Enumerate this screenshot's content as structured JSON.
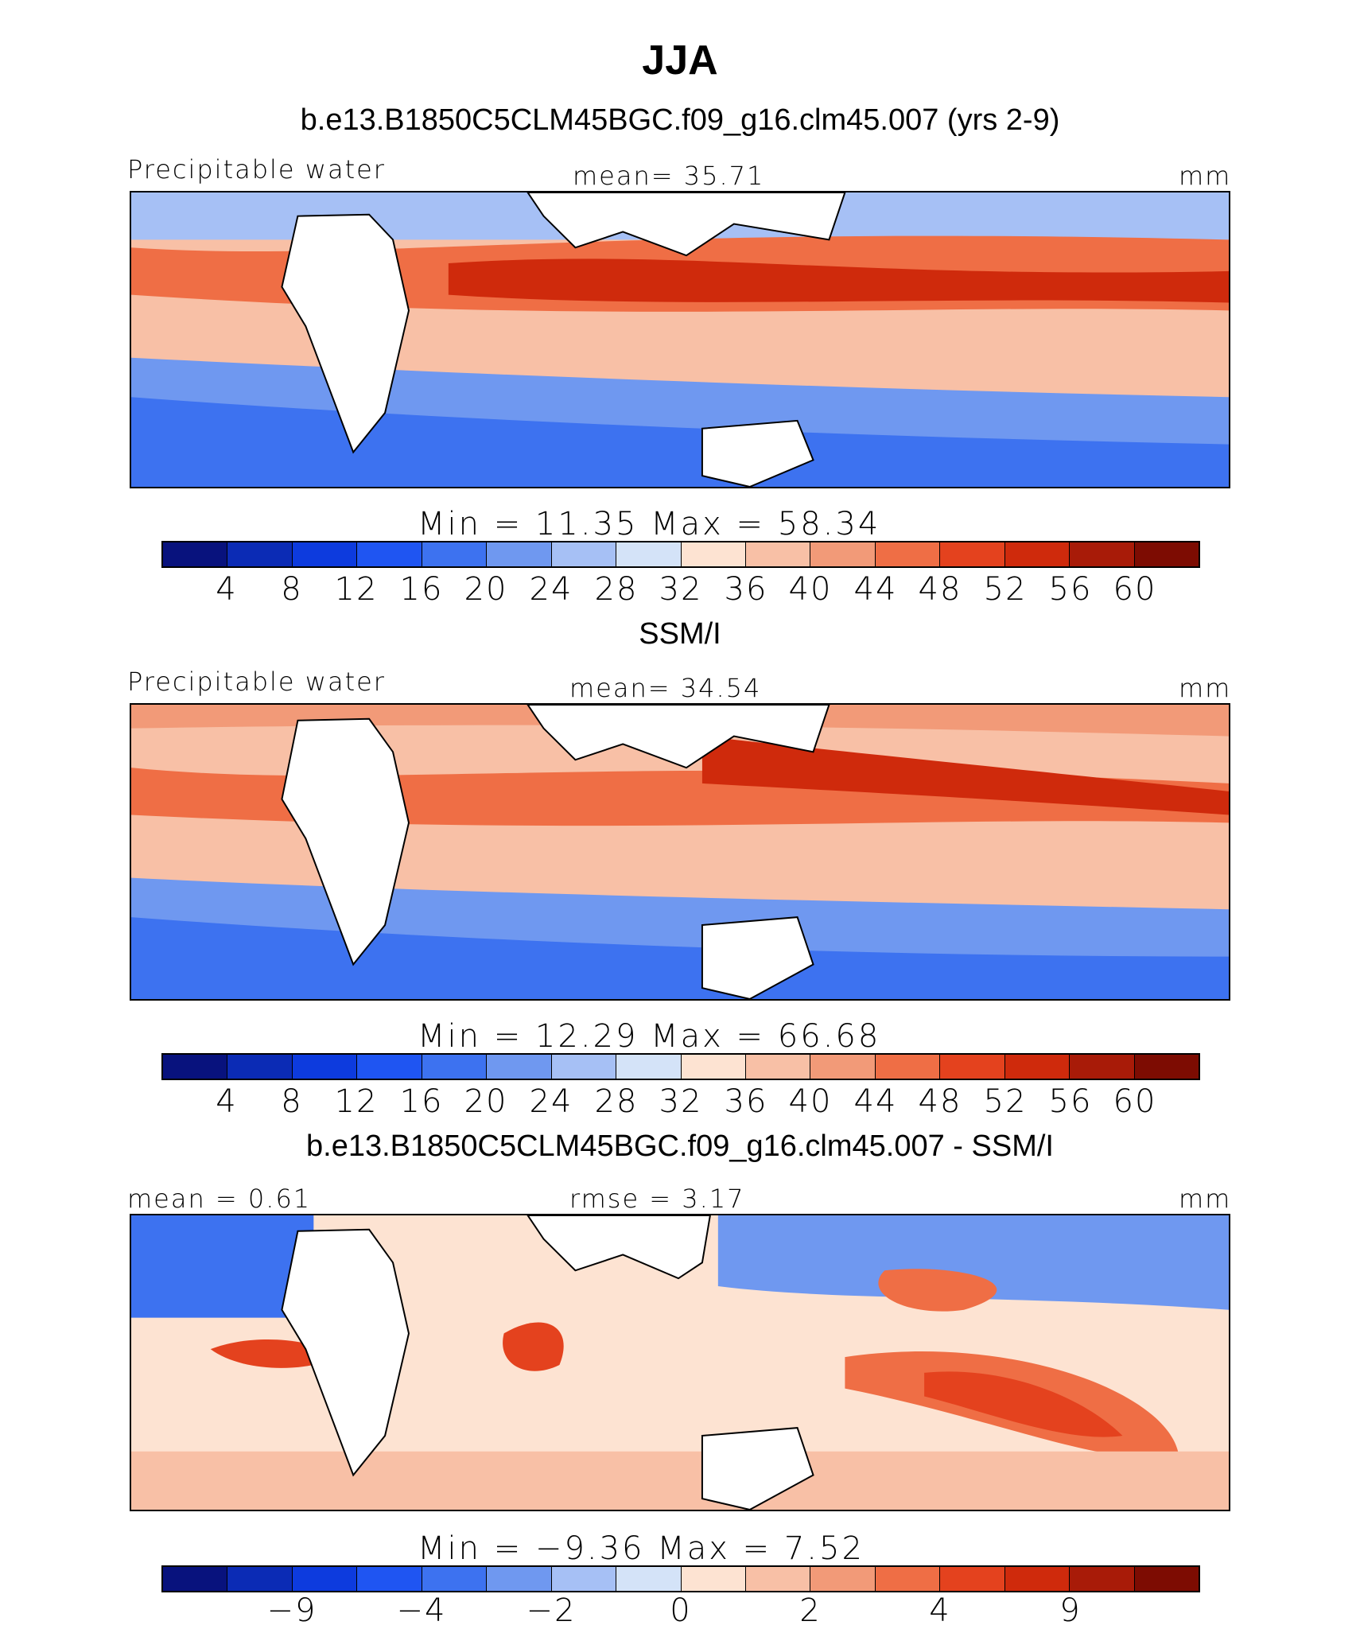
{
  "title": "JJA",
  "palette_abs": [
    "#08127d",
    "#0b2bb5",
    "#0d3bde",
    "#1f55f2",
    "#3d72f0",
    "#6f98f0",
    "#a6c0f5",
    "#d4e3f8",
    "#fde3d2",
    "#f8c0a6",
    "#f29a78",
    "#ef6e45",
    "#e4421e",
    "#cf2a0c",
    "#a81b08",
    "#7d0c02"
  ],
  "palette_diff": [
    "#08127d",
    "#0b2bb5",
    "#0d3bde",
    "#1f55f2",
    "#3d72f0",
    "#6f98f0",
    "#a6c0f5",
    "#d4e3f8",
    "#fde3d2",
    "#f8c0a6",
    "#f29a78",
    "#ef6e45",
    "#e4421e",
    "#cf2a0c",
    "#a81b08",
    "#7d0c02"
  ],
  "panels": [
    {
      "subtitle": "b.e13.B1850C5CLM45BGC.f09_g16.clm45.007 (yrs 2-9)",
      "left_label": "Precipitable water",
      "center_label": "mean=  35.71",
      "right_label": "mm",
      "minmax": "Min =   11.35 Max =   58.34",
      "ticks": [
        "4",
        "8",
        "12",
        "16",
        "20",
        "24",
        "28",
        "32",
        "36",
        "40",
        "44",
        "48",
        "52",
        "56",
        "60"
      ]
    },
    {
      "subtitle": "SSM/I",
      "left_label": "Precipitable water",
      "center_label": "mean=  34.54",
      "right_label": "mm",
      "minmax": "Min =   12.29 Max =   66.68",
      "ticks": [
        "4",
        "8",
        "12",
        "16",
        "20",
        "24",
        "28",
        "32",
        "36",
        "40",
        "44",
        "48",
        "52",
        "56",
        "60"
      ]
    },
    {
      "subtitle": "b.e13.B1850C5CLM45BGC.f09_g16.clm45.007 - SSM/I",
      "left_label": "mean =   0.61",
      "center_label": "rmse =   3.17",
      "right_label": "mm",
      "minmax": "Min =  −9.36 Max =    7.52",
      "ticks": [
        "−9",
        "",
        "−4",
        "",
        "−2",
        "",
        "0",
        "",
        "2",
        "",
        "4",
        "",
        "9",
        "",
        ""
      ]
    }
  ]
}
